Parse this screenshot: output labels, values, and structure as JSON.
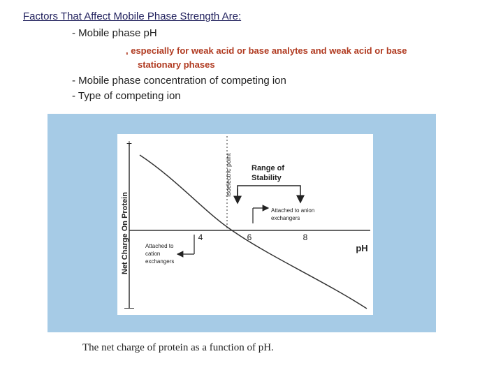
{
  "header": {
    "title": "Factors That Affect Mobile Phase Strength Are:"
  },
  "bullets": [
    "- Mobile phase pH",
    "- Mobile phase concentration of competing ion",
    "- Type of competing ion"
  ],
  "note": [
    ", especially for weak acid or base analytes and weak acid or base",
    "stationary phases"
  ],
  "figure": {
    "y_axis_label": "Net Charge On Protein",
    "y_plus": "+",
    "y_minus": "—",
    "x_ticks": [
      "4",
      "6",
      "8"
    ],
    "x_axis_label": "pH",
    "isoelectric_label": "Isoelectric point",
    "range_label": [
      "Range of",
      "Stability"
    ],
    "anion_label": [
      "Attached to anion",
      "exchangers"
    ],
    "cation_label": [
      "Attached to",
      "cation",
      "exchangers"
    ],
    "caption": "The net charge of protein as a function of pH."
  }
}
